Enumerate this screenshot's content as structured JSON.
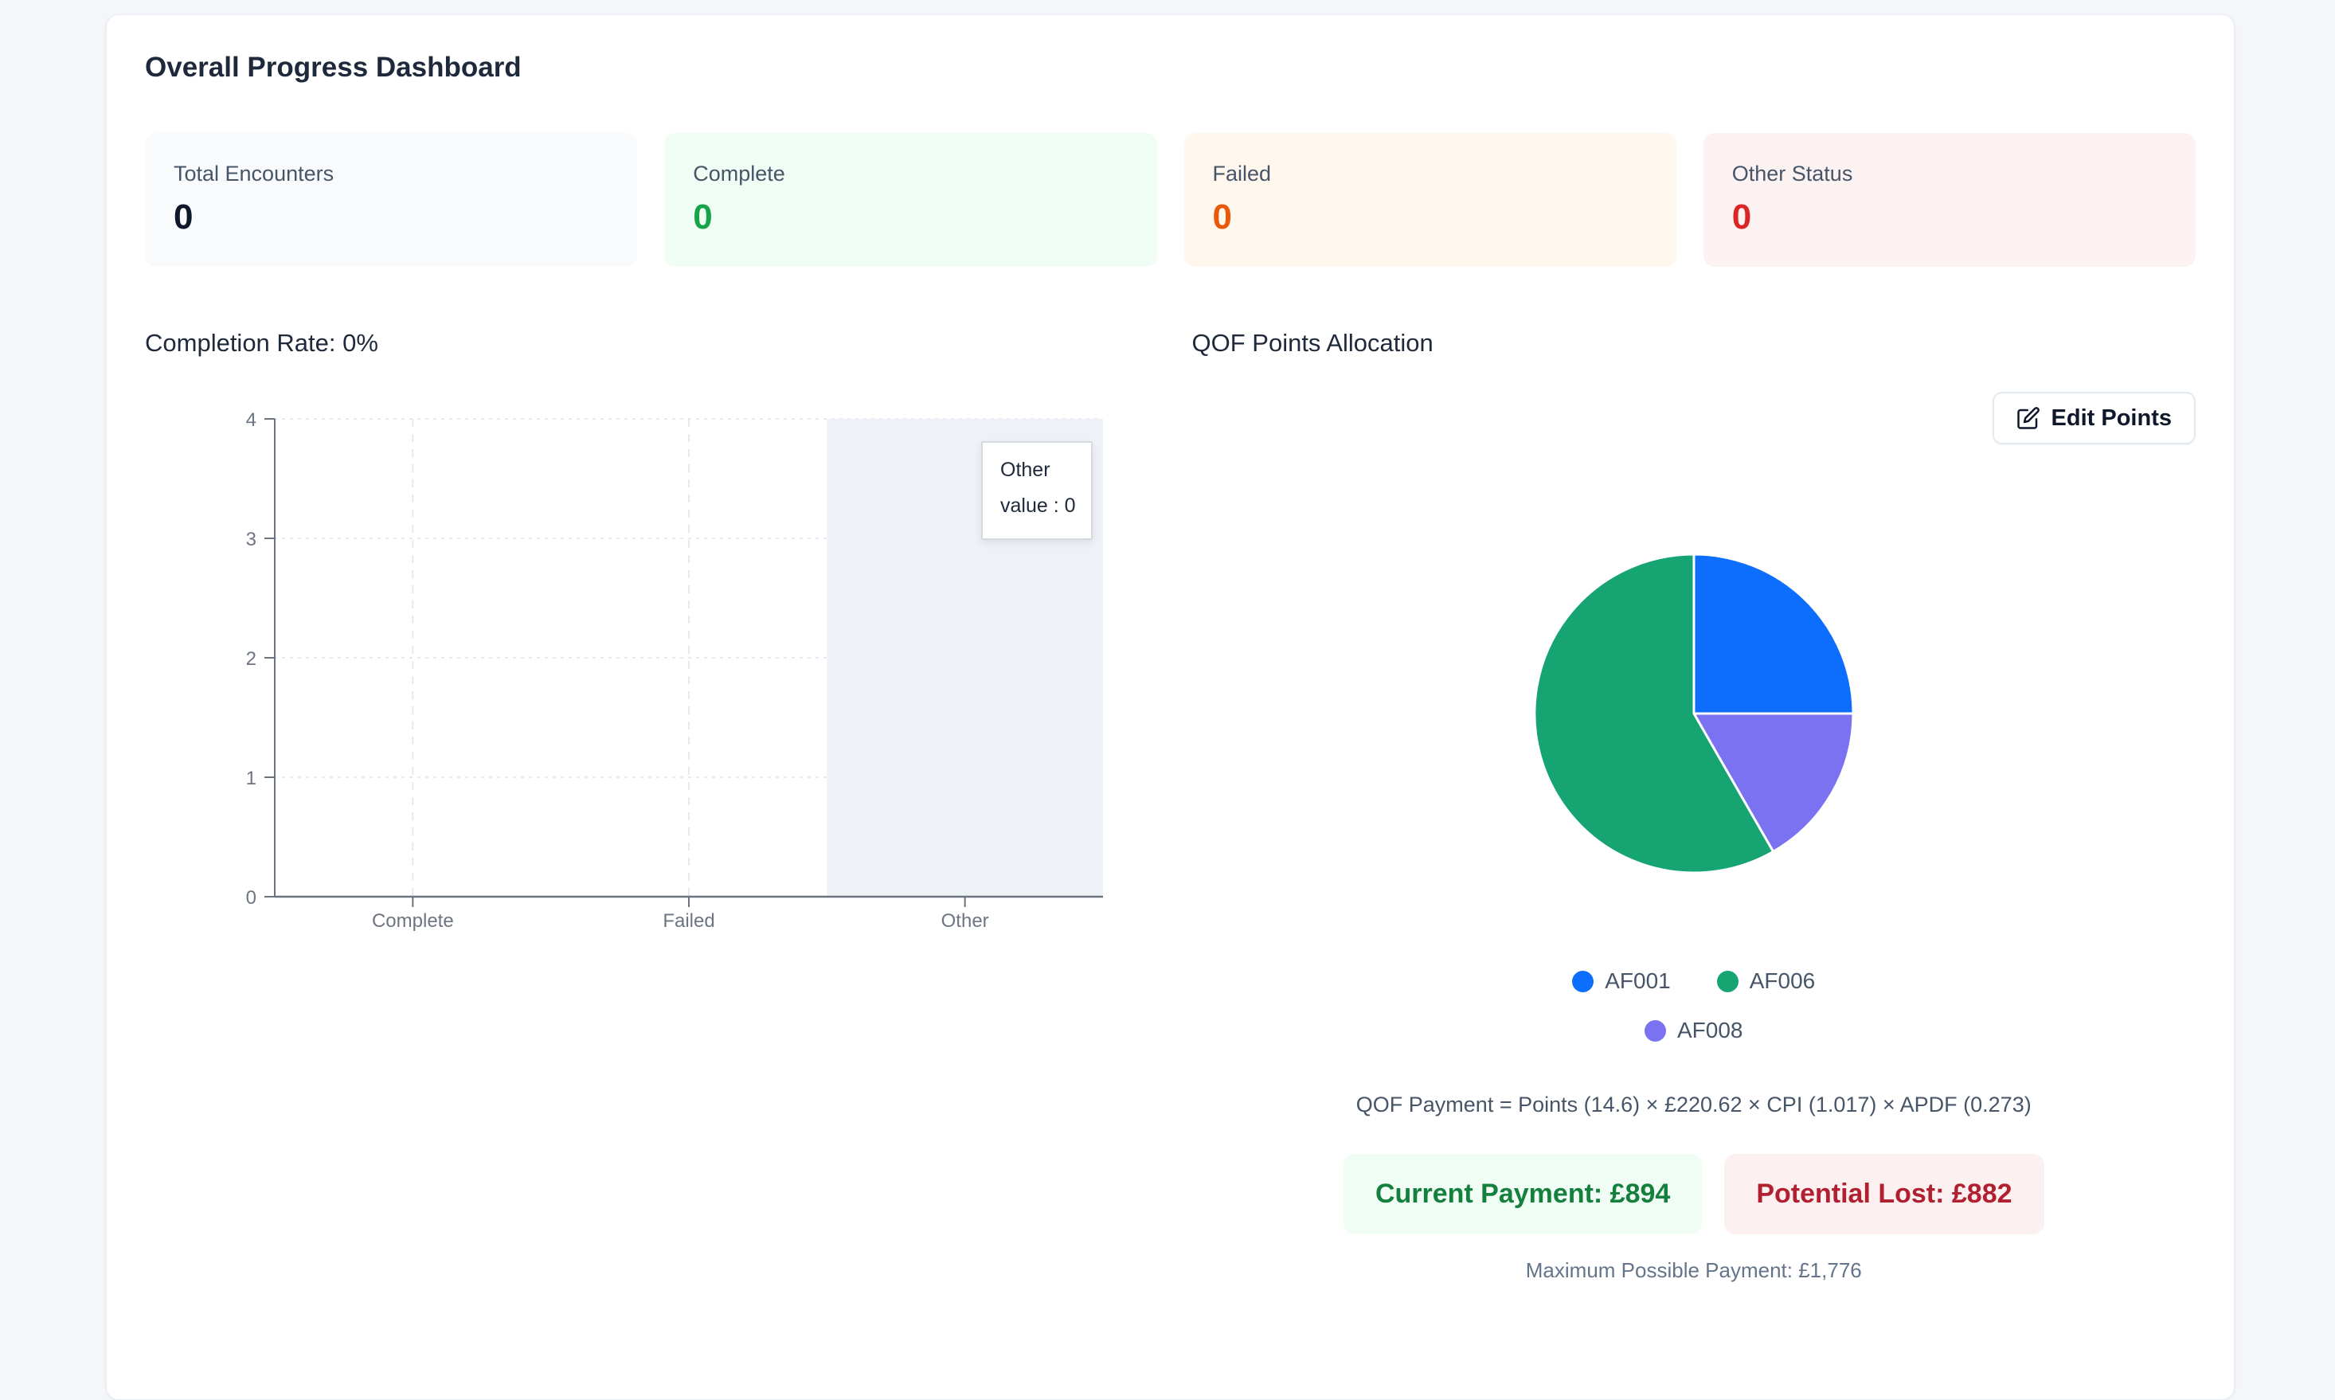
{
  "header": {
    "title": "Overall Progress Dashboard"
  },
  "stats": [
    {
      "label": "Total Encounters",
      "value": "0",
      "bg": "#f8fafc",
      "color": "#0f172a"
    },
    {
      "label": "Complete",
      "value": "0",
      "bg": "#f0fdf4",
      "color": "#16a34a"
    },
    {
      "label": "Failed",
      "value": "0",
      "bg": "#fff7ed",
      "color": "#ea580c"
    },
    {
      "label": "Other Status",
      "value": "0",
      "bg": "#fdf2f2",
      "color": "#dc2626"
    }
  ],
  "completion": {
    "heading": "Completion Rate: 0%",
    "chart_data": {
      "type": "bar",
      "categories": [
        "Complete",
        "Failed",
        "Other"
      ],
      "values": [
        0,
        0,
        0
      ],
      "title": "Completion Rate: 0%",
      "xlabel": "",
      "ylabel": "",
      "ylim": [
        0,
        4
      ],
      "yticks": [
        0,
        1,
        2,
        3,
        4
      ],
      "grid": true,
      "highlighted_category": "Other",
      "tooltip": {
        "title": "Other",
        "line": "value : 0"
      }
    }
  },
  "qof": {
    "heading": "QOF Points Allocation",
    "edit_button_label": "Edit Points",
    "chart_data": {
      "type": "pie",
      "slices": [
        {
          "label": "AF001",
          "percent": 25.0,
          "color": "#0d6efd"
        },
        {
          "label": "AF008",
          "percent": 16.7,
          "color": "#7a72f0"
        },
        {
          "label": "AF006",
          "percent": 58.3,
          "color": "#16a572"
        }
      ],
      "legend_order": [
        "AF001",
        "AF006",
        "AF008"
      ],
      "legend_position": "bottom"
    },
    "formula": "QOF Payment = Points (14.6) × £220.62 × CPI (1.017) × APDF (0.273)",
    "current_payment": "Current Payment: £894",
    "potential_lost": "Potential Lost: £882",
    "max_payment": "Maximum Possible Payment: £1,776"
  }
}
